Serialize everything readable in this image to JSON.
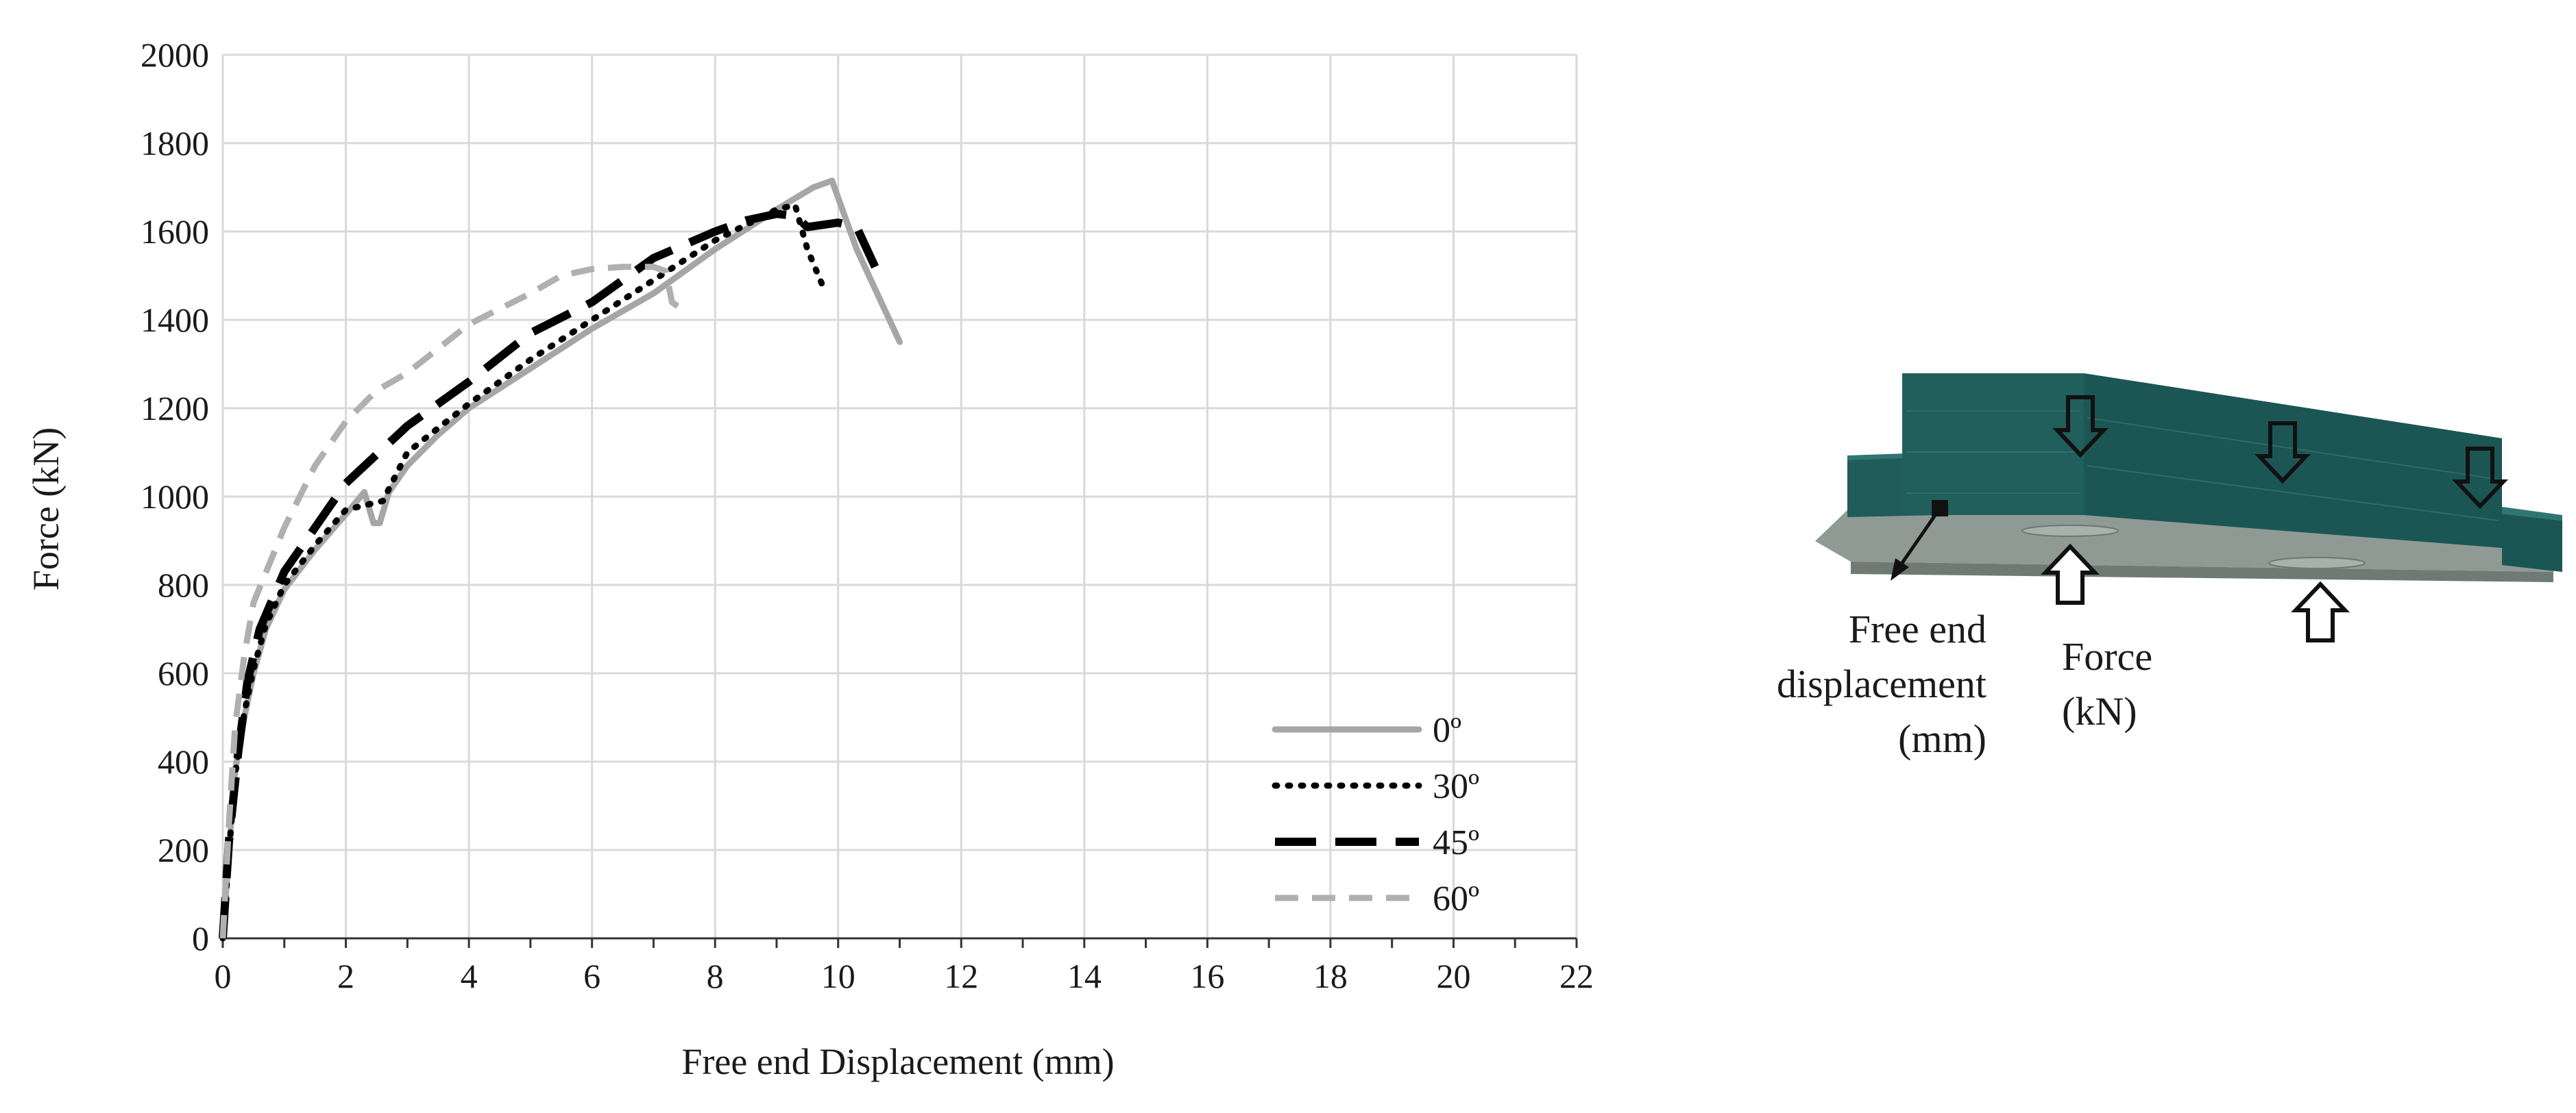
{
  "chart_data": {
    "type": "line",
    "title": "",
    "xlabel": "Free end Displacement (mm)",
    "ylabel": "Force (kN)",
    "xlim": [
      0,
      22
    ],
    "ylim": [
      0,
      2000
    ],
    "xticks": [
      0,
      2,
      4,
      6,
      8,
      10,
      12,
      14,
      16,
      18,
      20,
      22
    ],
    "yticks": [
      0,
      200,
      400,
      600,
      800,
      1000,
      1200,
      1400,
      1600,
      1800,
      2000
    ],
    "grid": true,
    "legend_position": "bottom-right",
    "series": [
      {
        "name": "0º",
        "style": "solid",
        "color": "#a6a6a6",
        "points": [
          [
            0,
            0
          ],
          [
            0.1,
            200
          ],
          [
            0.2,
            380
          ],
          [
            0.35,
            500
          ],
          [
            0.5,
            600
          ],
          [
            0.7,
            700
          ],
          [
            1.0,
            790
          ],
          [
            1.5,
            880
          ],
          [
            2.0,
            960
          ],
          [
            2.3,
            1010
          ],
          [
            2.45,
            940
          ],
          [
            2.55,
            940
          ],
          [
            2.7,
            1010
          ],
          [
            3.0,
            1070
          ],
          [
            3.5,
            1140
          ],
          [
            4.0,
            1200
          ],
          [
            5.0,
            1290
          ],
          [
            6.0,
            1380
          ],
          [
            7.0,
            1460
          ],
          [
            8.0,
            1560
          ],
          [
            9.0,
            1650
          ],
          [
            9.6,
            1700
          ],
          [
            9.9,
            1715
          ],
          [
            10.3,
            1560
          ],
          [
            11.0,
            1350
          ]
        ]
      },
      {
        "name": "30º",
        "style": "dotted",
        "color": "#000000",
        "points": [
          [
            0,
            0
          ],
          [
            0.1,
            190
          ],
          [
            0.2,
            370
          ],
          [
            0.35,
            510
          ],
          [
            0.5,
            610
          ],
          [
            0.7,
            710
          ],
          [
            1.0,
            800
          ],
          [
            1.5,
            890
          ],
          [
            2.0,
            970
          ],
          [
            2.3,
            980
          ],
          [
            2.6,
            990
          ],
          [
            3.0,
            1100
          ],
          [
            4.0,
            1210
          ],
          [
            5.0,
            1310
          ],
          [
            6.0,
            1400
          ],
          [
            7.0,
            1490
          ],
          [
            8.0,
            1580
          ],
          [
            9.0,
            1650
          ],
          [
            9.3,
            1660
          ],
          [
            9.5,
            1560
          ],
          [
            9.8,
            1460
          ]
        ]
      },
      {
        "name": "45º",
        "style": "dashed",
        "color": "#000000",
        "points": [
          [
            0,
            0
          ],
          [
            0.1,
            220
          ],
          [
            0.25,
            420
          ],
          [
            0.4,
            580
          ],
          [
            0.6,
            700
          ],
          [
            1.0,
            830
          ],
          [
            1.5,
            930
          ],
          [
            2.0,
            1030
          ],
          [
            3.0,
            1160
          ],
          [
            4.0,
            1260
          ],
          [
            5.0,
            1370
          ],
          [
            6.0,
            1440
          ],
          [
            7.0,
            1540
          ],
          [
            8.0,
            1600
          ],
          [
            8.5,
            1625
          ],
          [
            9.0,
            1640
          ],
          [
            9.3,
            1635
          ],
          [
            9.5,
            1610
          ],
          [
            10.0,
            1620
          ],
          [
            10.3,
            1610
          ],
          [
            10.6,
            1520
          ]
        ]
      },
      {
        "name": "60º",
        "style": "dashed-light",
        "color": "#b0b0b0",
        "points": [
          [
            0,
            0
          ],
          [
            0.1,
            260
          ],
          [
            0.2,
            480
          ],
          [
            0.35,
            640
          ],
          [
            0.5,
            760
          ],
          [
            1.0,
            930
          ],
          [
            1.5,
            1070
          ],
          [
            2.0,
            1170
          ],
          [
            2.5,
            1240
          ],
          [
            3.0,
            1280
          ],
          [
            4.0,
            1390
          ],
          [
            5.0,
            1460
          ],
          [
            5.5,
            1500
          ],
          [
            6.0,
            1515
          ],
          [
            6.5,
            1520
          ],
          [
            7.0,
            1520
          ],
          [
            7.2,
            1510
          ],
          [
            7.3,
            1440
          ],
          [
            7.4,
            1430
          ]
        ]
      }
    ]
  },
  "diagram": {
    "label_displacement": [
      "Free end",
      "displacement",
      "(mm)"
    ],
    "label_force": [
      "Force",
      "(kN)"
    ],
    "beam_color": "#1f5c5a",
    "base_color": "#8c9791"
  }
}
